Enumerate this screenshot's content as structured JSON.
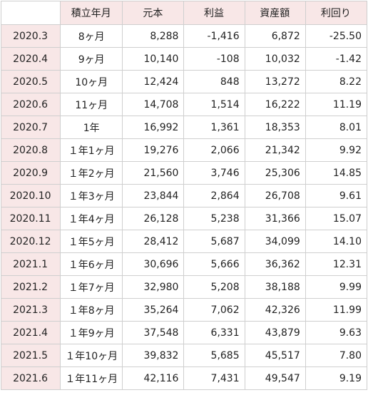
{
  "columns": [
    "",
    "積立年月",
    "元本",
    "利益",
    "資産額",
    "利回り"
  ],
  "rows": [
    {
      "month": "2020.3",
      "term": "8ヶ月",
      "principal": "8,288",
      "profit": "-1,416",
      "assets": "6,872",
      "yield": "-25.50"
    },
    {
      "month": "2020.4",
      "term": "9ヶ月",
      "principal": "10,140",
      "profit": "-108",
      "assets": "10,032",
      "yield": "-1.42"
    },
    {
      "month": "2020.5",
      "term": "10ヶ月",
      "principal": "12,424",
      "profit": "848",
      "assets": "13,272",
      "yield": "8.22"
    },
    {
      "month": "2020.6",
      "term": "11ヶ月",
      "principal": "14,708",
      "profit": "1,514",
      "assets": "16,222",
      "yield": "11.19"
    },
    {
      "month": "2020.7",
      "term": "1年",
      "principal": "16,992",
      "profit": "1,361",
      "assets": "18,353",
      "yield": "8.01"
    },
    {
      "month": "2020.8",
      "term": "１年1ヶ月",
      "principal": "19,276",
      "profit": "2,066",
      "assets": "21,342",
      "yield": "9.92"
    },
    {
      "month": "2020.9",
      "term": "１年2ヶ月",
      "principal": "21,560",
      "profit": "3,746",
      "assets": "25,306",
      "yield": "14.85"
    },
    {
      "month": "2020.10",
      "term": "１年3ヶ月",
      "principal": "23,844",
      "profit": "2,864",
      "assets": "26,708",
      "yield": "9.61"
    },
    {
      "month": "2020.11",
      "term": "１年4ヶ月",
      "principal": "26,128",
      "profit": "5,238",
      "assets": "31,366",
      "yield": "15.07"
    },
    {
      "month": "2020.12",
      "term": "１年5ヶ月",
      "principal": "28,412",
      "profit": "5,687",
      "assets": "34,099",
      "yield": "14.10"
    },
    {
      "month": "2021.1",
      "term": "１年6ヶ月",
      "principal": "30,696",
      "profit": "5,666",
      "assets": "36,362",
      "yield": "12.31"
    },
    {
      "month": "2021.2",
      "term": "１年7ヶ月",
      "principal": "32,980",
      "profit": "5,208",
      "assets": "38,188",
      "yield": "9.99"
    },
    {
      "month": "2021.3",
      "term": "１年8ヶ月",
      "principal": "35,264",
      "profit": "7,062",
      "assets": "42,326",
      "yield": "11.99"
    },
    {
      "month": "2021.4",
      "term": "１年9ヶ月",
      "principal": "37,548",
      "profit": "6,331",
      "assets": "43,879",
      "yield": "9.63"
    },
    {
      "month": "2021.5",
      "term": "１年10ヶ月",
      "principal": "39,832",
      "profit": "5,685",
      "assets": "45,517",
      "yield": "7.80"
    },
    {
      "month": "2021.6",
      "term": "１年11ヶ月",
      "principal": "42,116",
      "profit": "7,431",
      "assets": "49,547",
      "yield": "9.19"
    }
  ],
  "colors": {
    "header_bg": "#f8e7e7",
    "border": "#cfcfcf",
    "text": "#222222"
  }
}
